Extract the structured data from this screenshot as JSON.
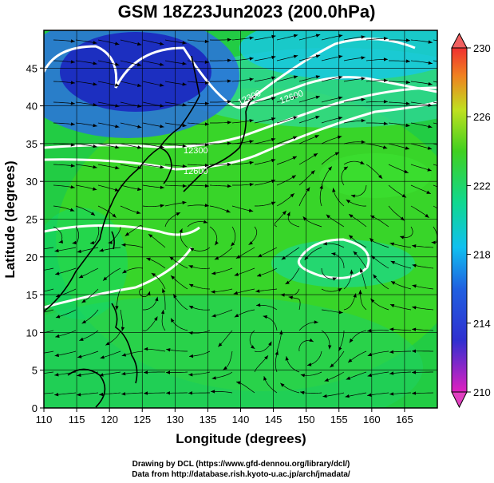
{
  "title": "GSM 18Z23Jun2023 (200.0hPa)",
  "credits": [
    "Drawing by DCL (https://www.gfd-dennou.org/library/dcl/)",
    "Data from http://database.rish.kyoto-u.ac.jp/arch/jmadata/"
  ],
  "chart_data": {
    "type": "heatmap",
    "title": "GSM 18Z23Jun2023 (200.0hPa)",
    "xlabel": "Longitude (degrees)",
    "ylabel": "Latitude  (degrees)",
    "xlim": [
      110,
      170
    ],
    "ylim": [
      0,
      50
    ],
    "xticks": [
      110,
      115,
      120,
      125,
      130,
      135,
      140,
      145,
      150,
      155,
      160,
      165
    ],
    "yticks": [
      0,
      5,
      10,
      15,
      20,
      25,
      30,
      35,
      40,
      45
    ],
    "grid": true,
    "overlay": "streamlines",
    "colorbar": {
      "min": 210,
      "max": 230,
      "ticks": [
        210,
        214,
        218,
        222,
        226,
        230
      ],
      "placement": "right"
    },
    "contour_labels": [
      "12300",
      "12600",
      "12300",
      "12600"
    ],
    "colors": {
      "low": "#d01cc8",
      "cold": "#1e2fc8",
      "mid": "#10c8f0",
      "warm": "#30d830",
      "hot": "#f0e020",
      "high": "#f03030",
      "contour": "#ffffff"
    }
  }
}
